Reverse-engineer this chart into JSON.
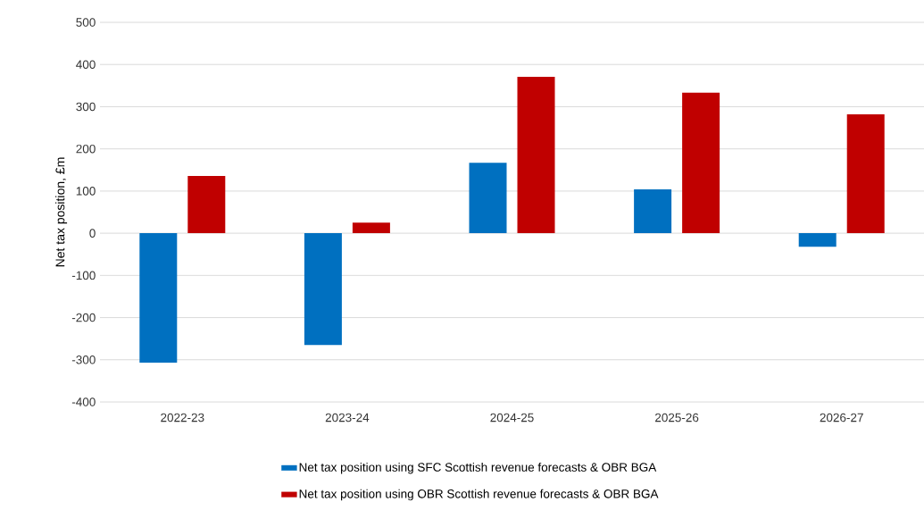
{
  "chart_data": {
    "type": "bar",
    "ylabel": "Net tax position, £m",
    "categories": [
      "2022-23",
      "2023-24",
      "2024-25",
      "2025-26",
      "2026-27"
    ],
    "series": [
      {
        "name": "Net tax position using SFC Scottish revenue forecasts & OBR BGA",
        "color": "#0070c0",
        "values": [
          -307,
          -265,
          167,
          104,
          -32
        ]
      },
      {
        "name": "Net tax position using OBR Scottish revenue forecasts & OBR BGA",
        "color": "#c00000",
        "values": [
          136,
          25,
          371,
          333,
          282
        ]
      }
    ],
    "ylim": [
      -400,
      500
    ],
    "yticks": [
      -400,
      -300,
      -200,
      -100,
      0,
      100,
      200,
      300,
      400,
      500
    ],
    "grid": "y",
    "legend": "bottom"
  }
}
